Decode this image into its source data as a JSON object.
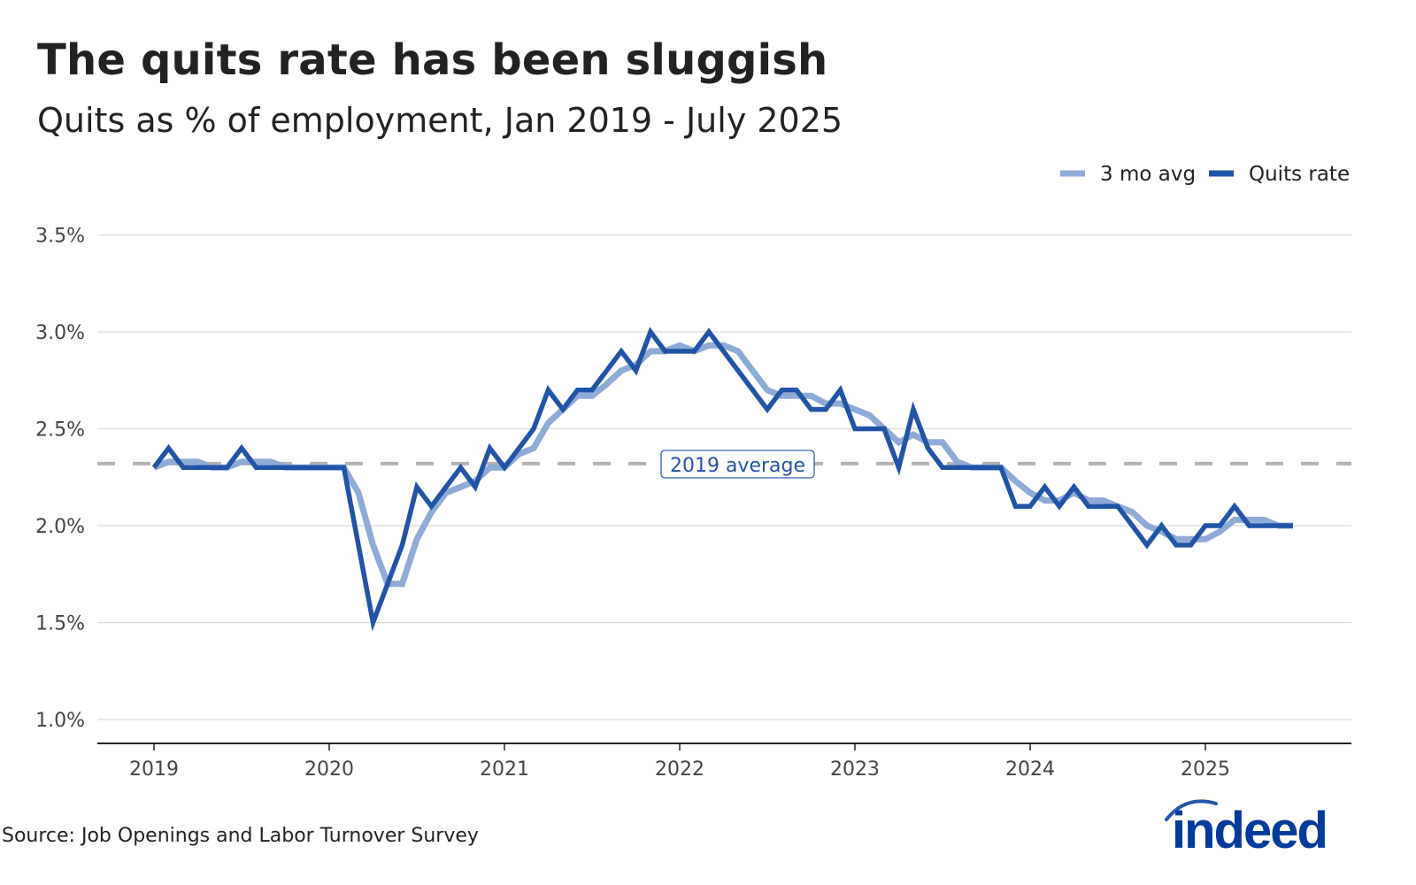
{
  "title": "The quits rate has been sluggish",
  "subtitle": "Quits as % of employment, Jan 2019 - July 2025",
  "source": "Source: Job Openings and Labor Turnover Survey",
  "logo_text": "indeed",
  "chart_data": {
    "type": "line",
    "title": "The quits rate has been sluggish",
    "subtitle": "Quits as % of employment, Jan 2019 - July 2025",
    "x_start": "2019-01",
    "x_end": "2025-07",
    "x_frequency": "monthly",
    "x_ticks": [
      "2019",
      "2020",
      "2021",
      "2022",
      "2023",
      "2024",
      "2025"
    ],
    "y_ticks": [
      "1.0%",
      "1.5%",
      "2.0%",
      "2.5%",
      "3.0%",
      "3.5%"
    ],
    "y_tick_values": [
      1.0,
      1.5,
      2.0,
      2.5,
      3.0,
      3.5
    ],
    "ylim": [
      0.88,
      3.55
    ],
    "grid": "horizontal",
    "legend_position": "top-right",
    "reference_line": {
      "label": "2019 average",
      "value": 2.32,
      "style": "dashed",
      "color": "#b3b3b3"
    },
    "series": [
      {
        "name": "3 mo avg",
        "color": "#8eaad6",
        "values": [
          2.3,
          2.33,
          2.33,
          2.33,
          2.3,
          2.3,
          2.33,
          2.33,
          2.33,
          2.3,
          2.3,
          2.3,
          2.3,
          2.3,
          2.17,
          1.9,
          1.7,
          1.7,
          1.93,
          2.07,
          2.17,
          2.2,
          2.23,
          2.3,
          2.3,
          2.37,
          2.4,
          2.53,
          2.6,
          2.67,
          2.67,
          2.73,
          2.8,
          2.83,
          2.9,
          2.9,
          2.93,
          2.9,
          2.93,
          2.93,
          2.9,
          2.8,
          2.7,
          2.67,
          2.67,
          2.67,
          2.63,
          2.63,
          2.6,
          2.57,
          2.5,
          2.43,
          2.47,
          2.43,
          2.43,
          2.33,
          2.3,
          2.3,
          2.3,
          2.23,
          2.17,
          2.13,
          2.13,
          2.17,
          2.13,
          2.13,
          2.1,
          2.07,
          2.0,
          1.97,
          1.93,
          1.93,
          1.93,
          1.97,
          2.03,
          2.03,
          2.03,
          2.0,
          2.0
        ]
      },
      {
        "name": "Quits rate",
        "color": "#2154a6",
        "values": [
          2.3,
          2.4,
          2.3,
          2.3,
          2.3,
          2.3,
          2.4,
          2.3,
          2.3,
          2.3,
          2.3,
          2.3,
          2.3,
          2.3,
          1.9,
          1.5,
          1.7,
          1.9,
          2.2,
          2.1,
          2.2,
          2.3,
          2.2,
          2.4,
          2.3,
          2.4,
          2.5,
          2.7,
          2.6,
          2.7,
          2.7,
          2.8,
          2.9,
          2.8,
          3.0,
          2.9,
          2.9,
          2.9,
          3.0,
          2.9,
          2.8,
          2.7,
          2.6,
          2.7,
          2.7,
          2.6,
          2.6,
          2.7,
          2.5,
          2.5,
          2.5,
          2.3,
          2.6,
          2.4,
          2.3,
          2.3,
          2.3,
          2.3,
          2.3,
          2.1,
          2.1,
          2.2,
          2.1,
          2.2,
          2.1,
          2.1,
          2.1,
          2.0,
          1.9,
          2.0,
          1.9,
          1.9,
          2.0,
          2.0,
          2.1,
          2.0,
          2.0,
          2.0,
          2.0
        ]
      }
    ]
  }
}
